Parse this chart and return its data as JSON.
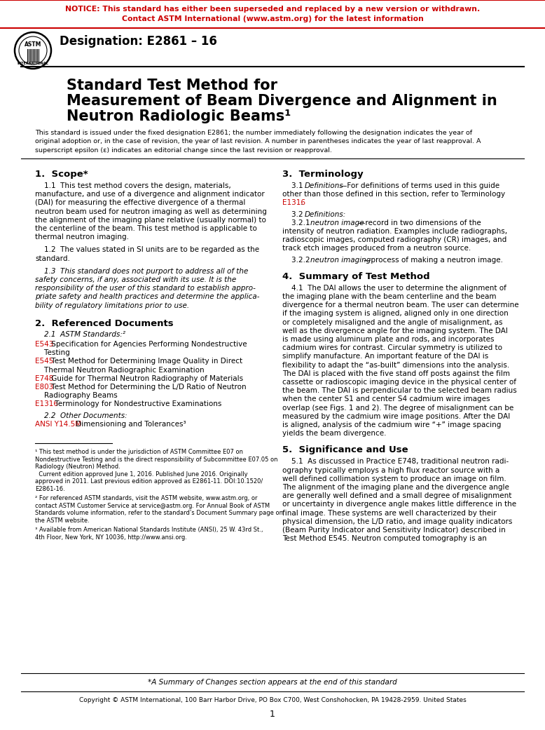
{
  "notice_line1": "NOTICE: This standard has either been superseded and replaced by a new version or withdrawn.",
  "notice_line2": "Contact ASTM International (www.astm.org) for the latest information",
  "notice_color": "#CC0000",
  "designation": "Designation: E2861 – 16",
  "title_line1": "Standard Test Method for",
  "title_line2": "Measurement of Beam Divergence and Alignment in",
  "title_line3": "Neutron Radiologic Beams¹",
  "subtitle": "This standard is issued under the fixed designation E2861; the number immediately following the designation indicates the year of\noriginal adoption or, in the case of revision, the year of last revision. A number in parentheses indicates the year of last reapproval. A\nsuperscript epsilon (ε) indicates an editorial change since the last revision or reapproval.",
  "section1_title": "1.  Scope*",
  "section1_p1_lines": [
    "    1.1  This test method covers the design, materials,",
    "manufacture, and use of a divergence and alignment indicator",
    "(DAI) for measuring the effective divergence of a thermal",
    "neutron beam used for neutron imaging as well as determining",
    "the alignment of the imaging plane relative (usually normal) to",
    "the centerline of the beam. This test method is applicable to",
    "thermal neutron imaging."
  ],
  "section1_p2_lines": [
    "    1.2  The values stated in SI units are to be regarded as the",
    "standard."
  ],
  "section1_p3_lines": [
    "    1.3  This standard does not purport to address all of the",
    "safety concerns, if any, associated with its use. It is the",
    "responsibility of the user of this standard to establish appro-",
    "priate safety and health practices and determine the applica-",
    "bility of regulatory limitations prior to use."
  ],
  "section2_title": "2.  Referenced Documents",
  "section2_sub1": "    2.1  ASTM Standards:²",
  "section2_link1_code": "E543",
  "section2_link1_text": " Specification for Agencies Performing Nondestructive",
  "section2_link1_text2": "    Testing",
  "section2_link2_code": "E545",
  "section2_link2_text": " Test Method for Determining Image Quality in Direct",
  "section2_link2_text2": "    Thermal Neutron Radiographic Examination",
  "section2_link3_code": "E748",
  "section2_link3_text": " Guide for Thermal Neutron Radiography of Materials",
  "section2_link4_code": "E803",
  "section2_link4_text": " Test Method for Determining the L/D Ratio of Neutron",
  "section2_link4_text2": "    Radiography Beams",
  "section2_link5_code": "E1316",
  "section2_link5_text": " Terminology for Nondestructive Examinations",
  "section2_sub2": "    2.2  Other Documents:",
  "section2_other_code": "ANSI Y14.5M",
  "section2_other_text": " Dimensioning and Tolerances³",
  "section3_title": "3.  Terminology",
  "section4_title": "4.  Summary of Test Method",
  "section4_p1_lines": [
    "    4.1  The DAI allows the user to determine the alignment of",
    "the imaging plane with the beam centerline and the beam",
    "divergence for a thermal neutron beam. The user can determine",
    "if the imaging system is aligned, aligned only in one direction",
    "or completely misaligned and the angle of misalignment, as",
    "well as the divergence angle for the imaging system. The DAI",
    "is made using aluminum plate and rods, and incorporates",
    "cadmium wires for contrast. Circular symmetry is utilized to",
    "simplify manufacture. An important feature of the DAI is",
    "flexibility to adapt the “as-built” dimensions into the analysis.",
    "The DAI is placed with the five stand off posts against the film",
    "cassette or radioscopic imaging device in the physical center of",
    "the beam. The DAI is perpendicular to the selected beam radius",
    "when the center S1 and center S4 cadmium wire images",
    "overlap (see Figs. 1 and 2). The degree of misalignment can be",
    "measured by the cadmium wire image positions. After the DAI",
    "is aligned, analysis of the cadmium wire “+” image spacing",
    "yields the beam divergence."
  ],
  "section5_title": "5.  Significance and Use",
  "section5_p1_lines": [
    "    5.1  As discussed in Practice E748, traditional neutron radi-",
    "ography typically employs a high flux reactor source with a",
    "well defined collimation system to produce an image on film.",
    "The alignment of the imaging plane and the divergence angle",
    "are generally well defined and a small degree of misalignment",
    "or uncertainty in divergence angle makes little difference in the",
    "final image. These systems are well characterized by their",
    "physical dimension, the L/D ratio, and image quality indicators",
    "(Beam Purity Indicator and Sensitivity Indicator) described in",
    "Test Method E545. Neutron computed tomography is an"
  ],
  "footer_note1_lines": [
    "¹ This test method is under the jurisdiction of ASTM Committee E07 on",
    "Nondestructive Testing and is the direct responsibility of Subcommittee E07.05 on",
    "Radiology (Neutron) Method.",
    "  Current edition approved June 1, 2016. Published June 2016. Originally",
    "approved in 2011. Last previous edition approved as E2861-11. DOI:10.1520/",
    "E2861-16."
  ],
  "footer_note2_lines": [
    "² For referenced ASTM standards, visit the ASTM website, www.astm.org, or",
    "contact ASTM Customer Service at service@astm.org. For Annual Book of ASTM",
    "Standards volume information, refer to the standard’s Document Summary page on",
    "the ASTM website."
  ],
  "footer_note3_lines": [
    "³ Available from American National Standards Institute (ANSI), 25 W. 43rd St.,",
    "4th Floor, New York, NY 10036, http://www.ansi.org."
  ],
  "footer_summary": "*A Summary of Changes section appears at the end of this standard",
  "footer_copyright": "Copyright © ASTM International, 100 Barr Harbor Drive, PO Box C700, West Conshohocken, PA 19428-2959. United States",
  "footer_page": "1",
  "link_color": "#CC0000",
  "bg_color": "#ffffff",
  "text_color": "#000000"
}
